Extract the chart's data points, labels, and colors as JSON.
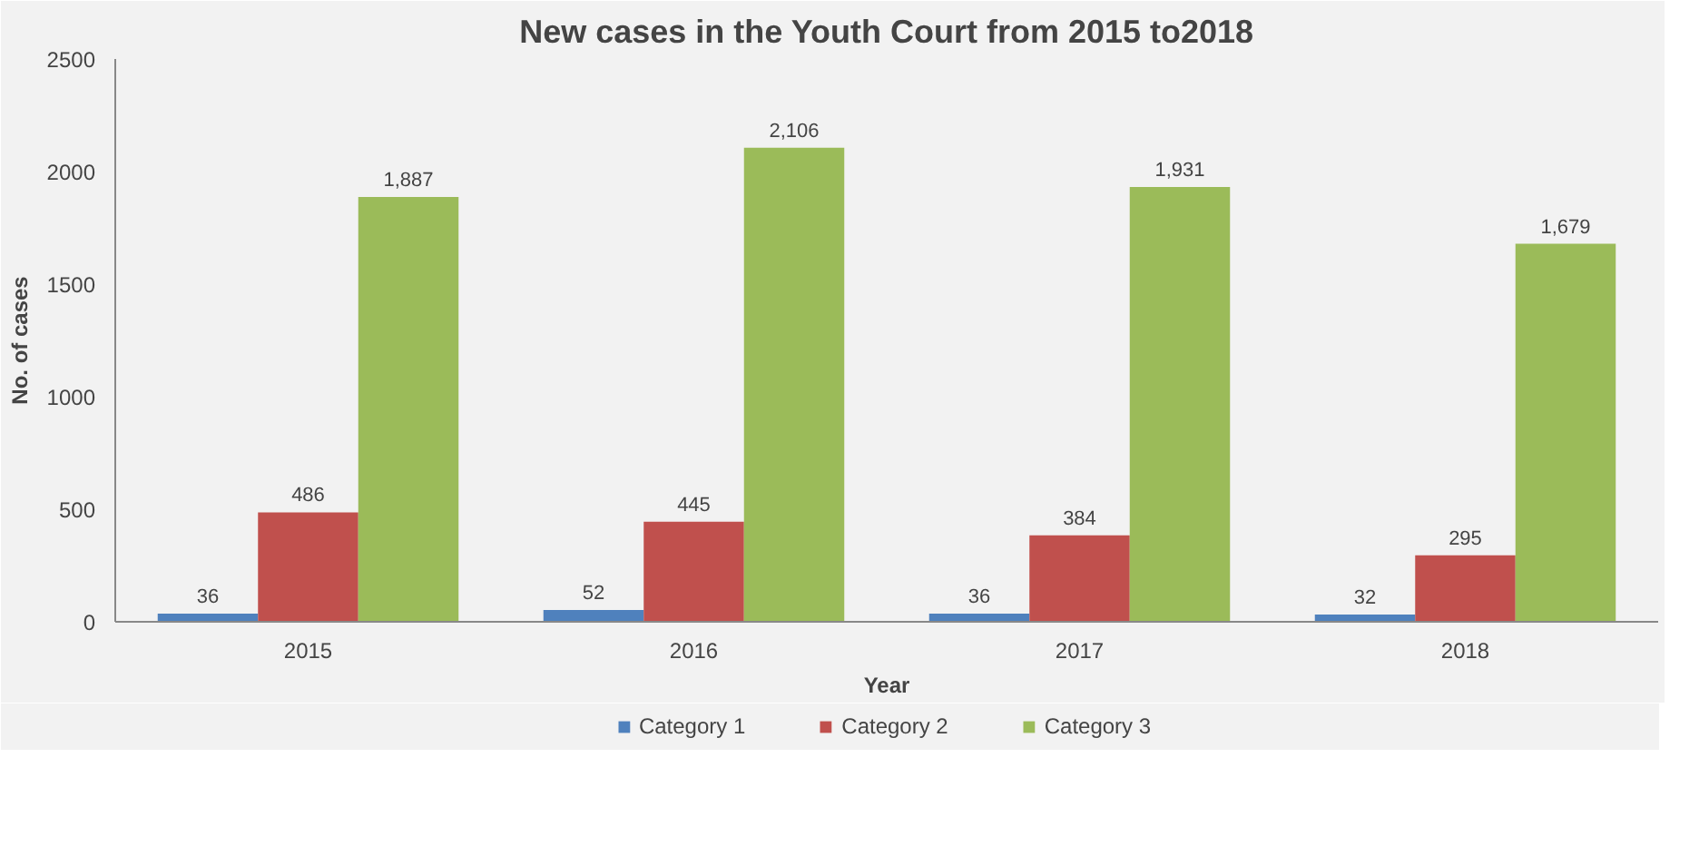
{
  "chart_data": {
    "type": "bar",
    "title": "New cases in the Youth Court from 2015 to2018",
    "xlabel": "Year",
    "ylabel": "No. of cases",
    "categories": [
      "2015",
      "2016",
      "2017",
      "2018"
    ],
    "series": [
      {
        "name": "Category 1",
        "color": "#4f81bd",
        "values": [
          36,
          52,
          36,
          32
        ],
        "value_labels": [
          "36",
          "52",
          "36",
          "32"
        ]
      },
      {
        "name": "Category 2",
        "color": "#c0504d",
        "values": [
          486,
          445,
          384,
          295
        ],
        "value_labels": [
          "486",
          "445",
          "384",
          "295"
        ]
      },
      {
        "name": "Category 3",
        "color": "#9bbb59",
        "values": [
          1887,
          2106,
          1931,
          1679
        ],
        "value_labels": [
          "1,887",
          "2,106",
          "1,931",
          "1,679"
        ]
      }
    ],
    "ylim": [
      0,
      2500
    ],
    "yticks": [
      0,
      500,
      1000,
      1500,
      2000,
      2500
    ],
    "grid": false,
    "legend": "bottom"
  }
}
